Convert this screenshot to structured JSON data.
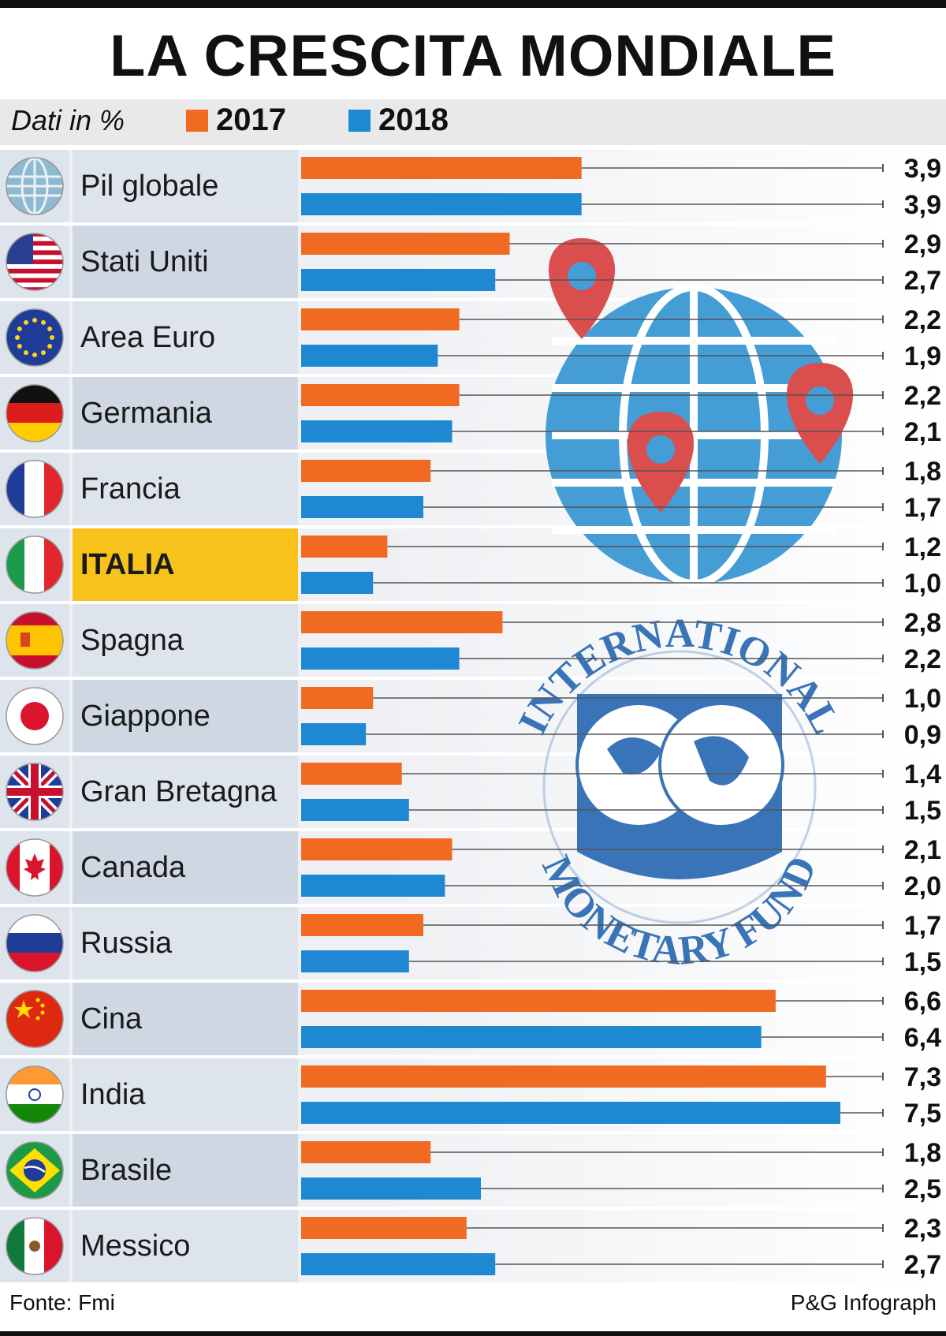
{
  "title": "LA CRESCITA MONDIALE",
  "unit_label": "Dati in %",
  "colors": {
    "y2017": "#f06a22",
    "y2018": "#1e88d2",
    "highlight": "#f7c21a"
  },
  "chart_data": {
    "type": "bar",
    "orientation": "horizontal",
    "categories": [
      "Pil globale",
      "Stati Uniti",
      "Area Euro",
      "Germania",
      "Francia",
      "ITALIA",
      "Spagna",
      "Giappone",
      "Gran Bretagna",
      "Canada",
      "Russia",
      "Cina",
      "India",
      "Brasile",
      "Messico"
    ],
    "series": [
      {
        "name": "2017",
        "values": [
          3.9,
          2.9,
          2.2,
          2.2,
          1.8,
          1.2,
          2.8,
          1.0,
          1.4,
          2.1,
          1.7,
          6.6,
          7.3,
          1.8,
          2.3
        ],
        "labels": [
          "3,9",
          "2,9",
          "2,2",
          "2,2",
          "1,8",
          "1,2",
          "2,8",
          "1,0",
          "1,4",
          "2,1",
          "1,7",
          "6,6",
          "7,3",
          "1,8",
          "2,3"
        ]
      },
      {
        "name": "2018",
        "values": [
          3.9,
          2.7,
          1.9,
          2.1,
          1.7,
          1.0,
          2.2,
          0.9,
          1.5,
          2.0,
          1.5,
          6.4,
          7.5,
          2.5,
          2.7
        ],
        "labels": [
          "3,9",
          "2,7",
          "1,9",
          "2,1",
          "1,7",
          "1,0",
          "2,2",
          "0,9",
          "1,5",
          "2,0",
          "1,5",
          "6,4",
          "7,5",
          "2,5",
          "2,7"
        ]
      }
    ],
    "highlight": "ITALIA",
    "xlim": [
      0,
      7.5
    ],
    "grid": false,
    "legend": "top"
  },
  "logo_text": {
    "top": "INTERNATIONAL",
    "bottom": "MONETARY FUND"
  },
  "footer": {
    "source": "Fonte: Fmi",
    "credit": "P&G Infograph"
  }
}
